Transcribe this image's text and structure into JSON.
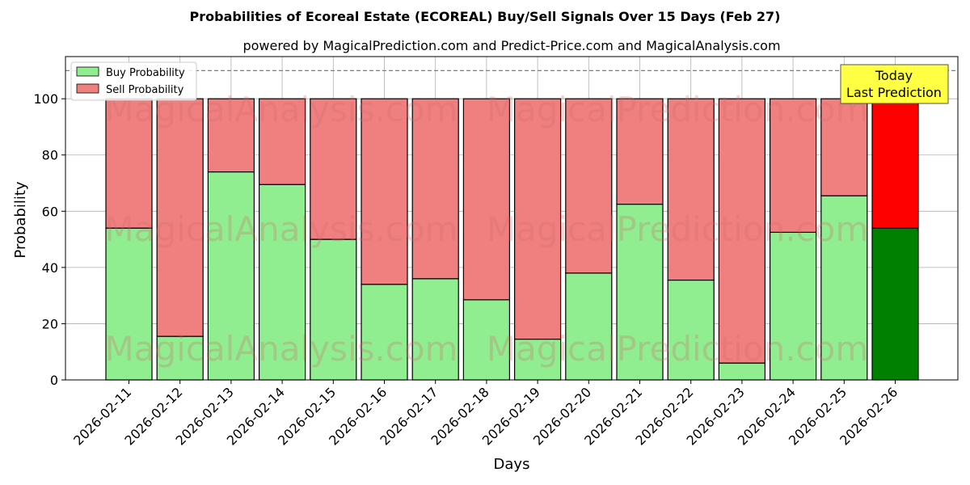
{
  "chart_data": {
    "type": "bar",
    "stacked": true,
    "title": "Probabilities of Ecoreal Estate (ECOREAL) Buy/Sell Signals Over 15 Days (Feb 27)",
    "subtitle": "powered by MagicalPrediction.com and Predict-Price.com and MagicalAnalysis.com",
    "xlabel": "Days",
    "ylabel": "Probability",
    "ylim": [
      0,
      115
    ],
    "yticks": [
      0,
      20,
      40,
      60,
      80,
      100
    ],
    "grid": true,
    "legend_position": "top-left",
    "reference_line": {
      "y": 110,
      "style": "dashed"
    },
    "categories": [
      "2026-02-11",
      "2026-02-12",
      "2026-02-13",
      "2026-02-14",
      "2026-02-15",
      "2026-02-16",
      "2026-02-17",
      "2026-02-18",
      "2026-02-19",
      "2026-02-20",
      "2026-02-21",
      "2026-02-22",
      "2026-02-23",
      "2026-02-24",
      "2026-02-25",
      "2026-02-26"
    ],
    "series": [
      {
        "name": "Buy Probability",
        "color": "#90ee90",
        "highlight_color": "#008000",
        "values": [
          54,
          15.5,
          74,
          69.5,
          50,
          34,
          36,
          28.5,
          14.5,
          38,
          62.5,
          35.5,
          6,
          52.5,
          65.5,
          54
        ]
      },
      {
        "name": "Sell Probability",
        "color": "#f08080",
        "highlight_color": "#ff0000",
        "values": [
          46,
          84.5,
          26,
          30.5,
          50,
          66,
          64,
          71.5,
          85.5,
          62,
          37.5,
          64.5,
          94,
          47.5,
          34.5,
          46
        ]
      }
    ],
    "highlight_index": 15,
    "annotation": {
      "lines": [
        "Today",
        "Last Prediction"
      ],
      "color": "#ffff44"
    },
    "watermark_lines": [
      "MagicalAnalysis.com",
      "MagicalPrediction.com"
    ]
  }
}
